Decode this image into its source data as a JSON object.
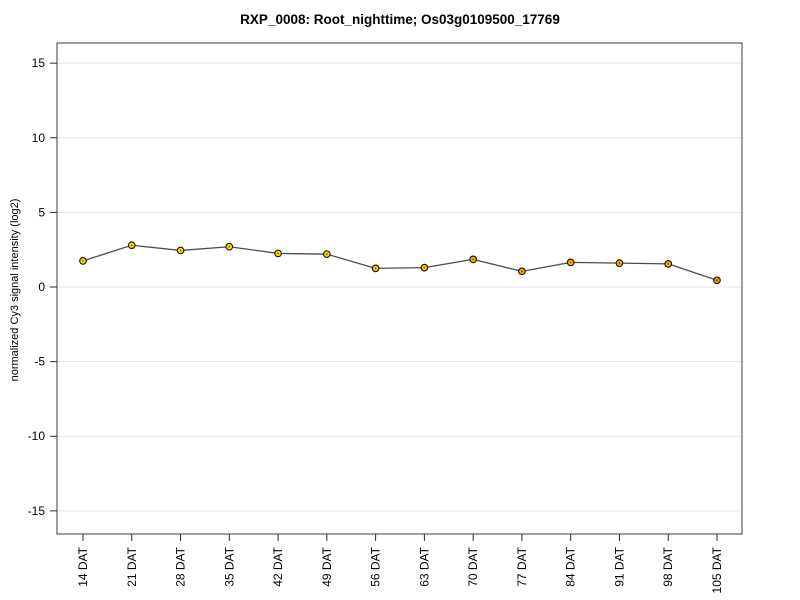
{
  "figure": {
    "title": "RXP_0008: Root_nighttime; Os03g0109500_17769"
  },
  "chart_data": {
    "type": "line",
    "title": "RXP_0008: Root_nighttime; Os03g0109500_17769",
    "xlabel": "",
    "ylabel": "normalized Cy3 signal intensity (log2)",
    "categories": [
      "14 DAT",
      "21 DAT",
      "28 DAT",
      "35 DAT",
      "42 DAT",
      "49 DAT",
      "56 DAT",
      "63 DAT",
      "70 DAT",
      "77 DAT",
      "84 DAT",
      "91 DAT",
      "98 DAT",
      "105 DAT"
    ],
    "values": [
      1.75,
      2.8,
      2.45,
      2.7,
      2.25,
      2.2,
      1.25,
      1.3,
      1.85,
      1.05,
      1.65,
      1.6,
      1.55,
      0.45
    ],
    "point_colors": [
      "#ffdf00",
      "#ffdf00",
      "#ffdf00",
      "#ffdf00",
      "#ffdc00",
      "#ffd900",
      "#ffc800",
      "#ffc600",
      "#ffa800",
      "#ffa500",
      "#ffa800",
      "#ffa500",
      "#ffa500",
      "#ff8f00"
    ],
    "yticks": [
      -15,
      -10,
      -5,
      0,
      5,
      10,
      15
    ],
    "ylim": [
      -16.55,
      16.35
    ],
    "grid": "horizontal",
    "legend": "none",
    "colors": {
      "line": "#4d4d4d",
      "point_stroke": "#111111",
      "point_center": "#6e4400",
      "gridline": "#e4e4e4",
      "box_border": "#3d3d3d",
      "tick": "#2a2a2a",
      "background": "#ffffff"
    }
  }
}
